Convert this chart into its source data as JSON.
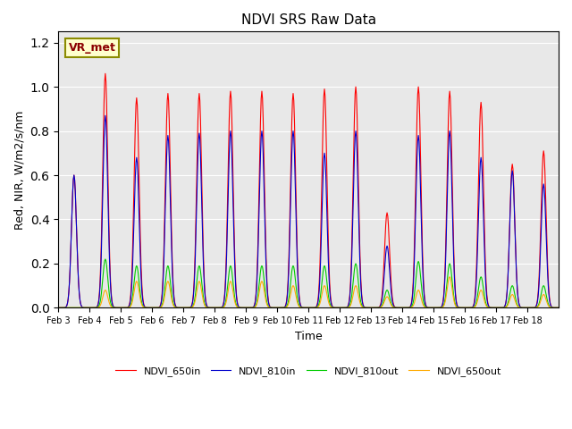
{
  "title": "NDVI SRS Raw Data",
  "xlabel": "Time",
  "ylabel": "Red, NIR, W/m2/s/nm",
  "annotation": "VR_met",
  "ylim": [
    0,
    1.25
  ],
  "xtick_labels": [
    "Feb 3",
    "Feb 4",
    "Feb 5",
    "Feb 6",
    "Feb 7",
    "Feb 8",
    "Feb 9",
    "Feb 10",
    "Feb 11",
    "Feb 12",
    "Feb 13",
    "Feb 14",
    "Feb 15",
    "Feb 16",
    "Feb 17",
    "Feb 18"
  ],
  "legend_labels": [
    "NDVI_650in",
    "NDVI_810in",
    "NDVI_810out",
    "NDVI_650out"
  ],
  "colors": [
    "#ff0000",
    "#0000cc",
    "#00cc00",
    "#ffaa00"
  ],
  "background_color": "#e8e8e8",
  "figsize": [
    6.4,
    4.8
  ],
  "dpi": 100,
  "spike_peaks_650in": [
    0.6,
    1.06,
    0.95,
    0.97,
    0.97,
    0.98,
    0.98,
    0.97,
    0.99,
    1.0,
    0.43,
    1.0,
    0.98,
    0.93,
    0.65,
    0.71
  ],
  "spike_peaks_810in": [
    0.6,
    0.87,
    0.68,
    0.78,
    0.79,
    0.8,
    0.8,
    0.8,
    0.7,
    0.8,
    0.28,
    0.78,
    0.8,
    0.68,
    0.62,
    0.56
  ],
  "spike_peaks_810out": [
    0.0,
    0.22,
    0.19,
    0.19,
    0.19,
    0.19,
    0.19,
    0.19,
    0.19,
    0.2,
    0.08,
    0.21,
    0.2,
    0.14,
    0.1,
    0.1
  ],
  "spike_peaks_650out": [
    0.0,
    0.08,
    0.12,
    0.12,
    0.12,
    0.12,
    0.12,
    0.1,
    0.1,
    0.1,
    0.05,
    0.08,
    0.14,
    0.08,
    0.06,
    0.06
  ]
}
